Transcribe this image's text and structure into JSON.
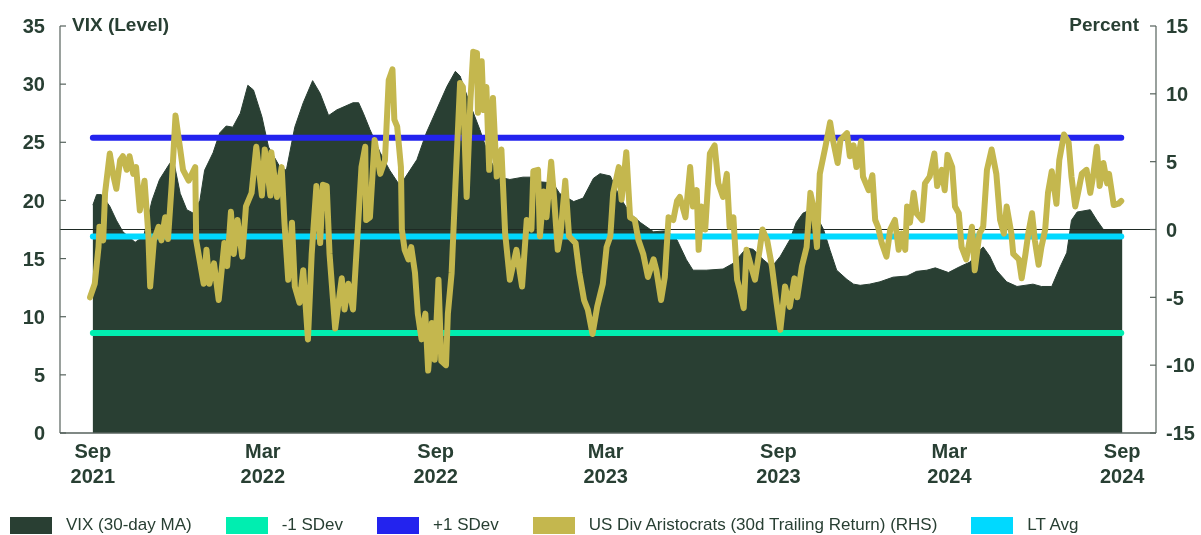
{
  "chart_data": {
    "type": "line",
    "ylabel": "VIX (Level)",
    "y2label": "Percent",
    "xlim": [
      "2021-07-28",
      "2024-10-07"
    ],
    "xticks": [
      {
        "value": "2021-09-01",
        "label": "Sep 2021"
      },
      {
        "value": "2022-03-01",
        "label": "Mar 2022"
      },
      {
        "value": "2022-09-01",
        "label": "Sep 2022"
      },
      {
        "value": "2023-03-01",
        "label": "Mar 2023"
      },
      {
        "value": "2023-09-01",
        "label": "Sep 2023"
      },
      {
        "value": "2024-03-01",
        "label": "Mar 2024"
      },
      {
        "value": "2024-09-01",
        "label": "Sep 2024"
      }
    ],
    "ylim": [
      0,
      35
    ],
    "yticks": [
      0,
      5,
      10,
      15,
      20,
      25,
      30,
      35
    ],
    "y2lim": [
      -15,
      15
    ],
    "y2ticks": [
      -15,
      -10,
      -5,
      0,
      5,
      10,
      15
    ],
    "legend": "bottom",
    "ref_lines": [
      {
        "axis": "y2",
        "value": 0,
        "color": "#1e2a24"
      }
    ],
    "series": [
      {
        "name": "VIX (30-day MA)",
        "type": "area",
        "color": "#293f33",
        "x": [
          "2021-09-01",
          "2021-09-05",
          "2021-09-10",
          "2021-09-19",
          "2021-09-26",
          "2021-10-03",
          "2021-10-16",
          "2021-10-25",
          "2021-11-03",
          "2021-11-11",
          "2021-11-22",
          "2021-11-27",
          "2021-12-03",
          "2021-12-10",
          "2021-12-17",
          "2021-12-24",
          "2021-12-29",
          "2022-01-07",
          "2022-01-14",
          "2022-01-21",
          "2022-01-28",
          "2022-02-05",
          "2022-02-13",
          "2022-02-19",
          "2022-02-28",
          "2022-03-07",
          "2022-03-19",
          "2022-03-26",
          "2022-04-04",
          "2022-04-13",
          "2022-04-23",
          "2022-05-01",
          "2022-05-10",
          "2022-05-19",
          "2022-05-22",
          "2022-06-05",
          "2022-06-11",
          "2022-06-16",
          "2022-06-23",
          "2022-07-04",
          "2022-07-14",
          "2022-07-23",
          "2022-07-30",
          "2022-08-12",
          "2022-08-22",
          "2022-09-02",
          "2022-09-13",
          "2022-09-22",
          "2022-09-27",
          "2022-10-07",
          "2022-10-18",
          "2022-10-29",
          "2022-11-08",
          "2022-11-19",
          "2022-12-03",
          "2022-12-12",
          "2022-12-21",
          "2023-01-04",
          "2023-01-11",
          "2023-01-26",
          "2023-02-05",
          "2023-02-16",
          "2023-02-23",
          "2023-03-06",
          "2023-03-16",
          "2023-03-27",
          "2023-04-07",
          "2023-04-21",
          "2023-05-05",
          "2023-05-16",
          "2023-05-26",
          "2023-06-02",
          "2023-06-16",
          "2023-07-04",
          "2023-07-15",
          "2023-07-29",
          "2023-08-05",
          "2023-08-16",
          "2023-08-25",
          "2023-09-03",
          "2023-09-13",
          "2023-09-20",
          "2023-09-27",
          "2023-10-05",
          "2023-10-12",
          "2023-10-19",
          "2023-10-26",
          "2023-11-02",
          "2023-11-13",
          "2023-11-20",
          "2023-11-27",
          "2023-12-07",
          "2023-12-18",
          "2024-01-01",
          "2024-01-16",
          "2024-01-26",
          "2024-02-06",
          "2024-02-15",
          "2024-02-29",
          "2024-03-12",
          "2024-03-23",
          "2024-04-01",
          "2024-04-06",
          "2024-04-13",
          "2024-04-20",
          "2024-05-01",
          "2024-05-12",
          "2024-05-29",
          "2024-06-07",
          "2024-06-18",
          "2024-06-27",
          "2024-07-04",
          "2024-07-09",
          "2024-07-15",
          "2024-07-29",
          "2024-08-05",
          "2024-08-12",
          "2024-09-01"
        ],
        "values": [
          19.6,
          20.5,
          20.5,
          19.5,
          18.3,
          17.3,
          16.4,
          16.9,
          20.0,
          21.8,
          23.2,
          23.0,
          20.6,
          19.2,
          18.9,
          20.0,
          22.6,
          24.1,
          25.8,
          26.4,
          26.3,
          27.5,
          29.9,
          29.5,
          27.2,
          24.6,
          22.9,
          22.6,
          26.3,
          28.4,
          30.3,
          29.2,
          27.3,
          27.8,
          27.9,
          28.4,
          28.4,
          27.5,
          26.1,
          24.1,
          22.6,
          21.5,
          21.9,
          23.5,
          25.8,
          27.8,
          29.8,
          31.1,
          30.7,
          28.4,
          26.1,
          23.5,
          22.0,
          21.8,
          22.0,
          22.0,
          21.6,
          21.5,
          20.6,
          19.9,
          20.2,
          21.9,
          22.3,
          22.1,
          20.3,
          18.9,
          18.1,
          17.3,
          17.4,
          16.6,
          14.9,
          14.0,
          14.0,
          14.1,
          14.6,
          15.9,
          15.8,
          14.9,
          14.3,
          15.2,
          16.6,
          18.1,
          18.9,
          19.2,
          18.6,
          17.5,
          15.7,
          14.0,
          13.2,
          12.8,
          12.7,
          12.8,
          13.0,
          13.4,
          13.5,
          13.9,
          14.0,
          14.2,
          13.8,
          14.3,
          14.7,
          15.6,
          16.0,
          15.2,
          14.0,
          13.0,
          12.6,
          12.8,
          12.6,
          12.6,
          14.3,
          15.5,
          18.3,
          19.0,
          19.2,
          18.3,
          17.5,
          17.5
        ]
      },
      {
        "name": "-1 SDev",
        "color": "#00eeb0",
        "x": [
          "2021-09-01",
          "2024-08-31"
        ],
        "values": [
          8.6,
          8.6
        ]
      },
      {
        "name": "+1 SDev",
        "color": "#2323ee",
        "x": [
          "2021-09-01",
          "2024-08-31"
        ],
        "values": [
          25.4,
          25.4
        ]
      },
      {
        "name": "US Div Aristocrats (30d Trailing Return) (RHS)",
        "axis": "y2",
        "color": "#c4b74e",
        "x": [
          "2021-08-29",
          "2021-09-03",
          "2021-09-07",
          "2021-09-08",
          "2021-09-12",
          "2021-09-14",
          "2021-09-19",
          "2021-09-23",
          "2021-09-26",
          "2021-09-30",
          "2021-10-03",
          "2021-10-07",
          "2021-10-10",
          "2021-10-14",
          "2021-10-17",
          "2021-10-21",
          "2021-10-26",
          "2021-10-30",
          "2021-11-01",
          "2021-11-05",
          "2021-11-10",
          "2021-11-13",
          "2021-11-17",
          "2021-11-20",
          "2021-11-24",
          "2021-11-28",
          "2021-12-03",
          "2021-12-06",
          "2021-12-12",
          "2021-12-19",
          "2021-12-20",
          "2021-12-28",
          "2021-12-31",
          "2022-01-03",
          "2022-01-08",
          "2022-01-13",
          "2022-01-19",
          "2022-01-22",
          "2022-01-26",
          "2022-01-29",
          "2022-02-02",
          "2022-02-07",
          "2022-02-11",
          "2022-02-17",
          "2022-02-22",
          "2022-02-28",
          "2022-03-03",
          "2022-03-09",
          "2022-03-10",
          "2022-03-16",
          "2022-03-21",
          "2022-03-24",
          "2022-03-28",
          "2022-04-01",
          "2022-04-04",
          "2022-04-09",
          "2022-04-13",
          "2022-04-18",
          "2022-04-22",
          "2022-04-27",
          "2022-05-01",
          "2022-05-04",
          "2022-05-08",
          "2022-05-11",
          "2022-05-17",
          "2022-05-20",
          "2022-05-24",
          "2022-05-27",
          "2022-05-31",
          "2022-06-05",
          "2022-06-09",
          "2022-06-14",
          "2022-06-18",
          "2022-06-19",
          "2022-06-23",
          "2022-06-28",
          "2022-07-04",
          "2022-07-09",
          "2022-07-13",
          "2022-07-17",
          "2022-07-19",
          "2022-07-22",
          "2022-07-26",
          "2022-07-27",
          "2022-07-30",
          "2022-08-03",
          "2022-08-06",
          "2022-08-10",
          "2022-08-13",
          "2022-08-17",
          "2022-08-21",
          "2022-08-24",
          "2022-08-28",
          "2022-08-31",
          "2022-09-04",
          "2022-09-07",
          "2022-09-12",
          "2022-09-14",
          "2022-09-18",
          "2022-09-22",
          "2022-09-27",
          "2022-09-30",
          "2022-10-04",
          "2022-10-08",
          "2022-10-11",
          "2022-10-15",
          "2022-10-16",
          "2022-10-20",
          "2022-10-22",
          "2022-10-25",
          "2022-10-28",
          "2022-11-01",
          "2022-11-05",
          "2022-11-10",
          "2022-11-14",
          "2022-11-19",
          "2022-11-26",
          "2022-12-02",
          "2022-12-07",
          "2022-12-12",
          "2022-12-14",
          "2022-12-19",
          "2022-12-21",
          "2022-12-25",
          "2022-12-28",
          "2023-01-02",
          "2023-01-05",
          "2023-01-09",
          "2023-01-12",
          "2023-01-17",
          "2023-01-21",
          "2023-01-28",
          "2023-02-01",
          "2023-02-06",
          "2023-02-10",
          "2023-02-15",
          "2023-02-20",
          "2023-02-26",
          "2023-03-02",
          "2023-03-06",
          "2023-03-09",
          "2023-03-15",
          "2023-03-18",
          "2023-03-23",
          "2023-03-27",
          "2023-04-01",
          "2023-04-05",
          "2023-04-10",
          "2023-04-15",
          "2023-04-21",
          "2023-04-24",
          "2023-04-29",
          "2023-05-03",
          "2023-05-07",
          "2023-05-12",
          "2023-05-16",
          "2023-05-19",
          "2023-05-25",
          "2023-05-30",
          "2023-06-02",
          "2023-06-06",
          "2023-06-08",
          "2023-06-11",
          "2023-06-15",
          "2023-06-20",
          "2023-06-25",
          "2023-06-29",
          "2023-07-04",
          "2023-07-08",
          "2023-07-11",
          "2023-07-15",
          "2023-07-19",
          "2023-07-22",
          "2023-07-26",
          "2023-07-29",
          "2023-08-04",
          "2023-08-07",
          "2023-08-12",
          "2023-08-15",
          "2023-08-20",
          "2023-08-25",
          "2023-08-30",
          "2023-09-03",
          "2023-09-08",
          "2023-09-13",
          "2023-09-18",
          "2023-09-21",
          "2023-09-26",
          "2023-10-01",
          "2023-10-05",
          "2023-10-08",
          "2023-10-12",
          "2023-10-15",
          "2023-10-21",
          "2023-10-26",
          "2023-10-29",
          "2023-11-03",
          "2023-11-06",
          "2023-11-13",
          "2023-11-16",
          "2023-11-20",
          "2023-11-23",
          "2023-11-28",
          "2023-11-30",
          "2023-12-06",
          "2023-12-10",
          "2023-12-13",
          "2023-12-16",
          "2023-12-20",
          "2023-12-25",
          "2023-12-29",
          "2024-01-03",
          "2024-01-07",
          "2024-01-10",
          "2024-01-14",
          "2024-01-16",
          "2024-01-19",
          "2024-01-23",
          "2024-01-26",
          "2024-02-01",
          "2024-02-04",
          "2024-02-09",
          "2024-02-14",
          "2024-02-17",
          "2024-02-22",
          "2024-02-25",
          "2024-02-28",
          "2024-03-04",
          "2024-03-07",
          "2024-03-11",
          "2024-03-14",
          "2024-03-19",
          "2024-03-25",
          "2024-03-28",
          "2024-04-02",
          "2024-04-06",
          "2024-04-10",
          "2024-04-15",
          "2024-04-20",
          "2024-04-24",
          "2024-04-28",
          "2024-05-01",
          "2024-05-06",
          "2024-05-08",
          "2024-05-14",
          "2024-05-17",
          "2024-05-21",
          "2024-05-24",
          "2024-05-28",
          "2024-05-31",
          "2024-06-04",
          "2024-06-07",
          "2024-06-11",
          "2024-06-14",
          "2024-06-18",
          "2024-06-23",
          "2024-06-26",
          "2024-07-01",
          "2024-07-06",
          "2024-07-09",
          "2024-07-13",
          "2024-07-16",
          "2024-07-20",
          "2024-07-25",
          "2024-07-29",
          "2024-08-01",
          "2024-08-05",
          "2024-08-08",
          "2024-08-12",
          "2024-08-16",
          "2024-08-18",
          "2024-08-23",
          "2024-08-28",
          "2024-08-31"
        ],
        "values": [
          -5.0,
          -4.0,
          -1.3,
          0.2,
          -0.8,
          2.7,
          5.6,
          3.9,
          3.0,
          5.1,
          5.4,
          4.4,
          5.4,
          4.1,
          4.6,
          1.4,
          3.6,
          -0.3,
          -4.2,
          -0.8,
          0.2,
          -0.8,
          0.9,
          -0.7,
          3.4,
          8.4,
          5.9,
          4.4,
          3.6,
          4.6,
          -0.8,
          -4.0,
          -1.5,
          -4.0,
          -2.5,
          -5.2,
          -1.0,
          -2.7,
          1.3,
          -1.8,
          0.7,
          -2.0,
          1.7,
          2.7,
          6.1,
          2.5,
          5.9,
          2.5,
          5.7,
          2.4,
          4.6,
          0.5,
          -3.7,
          0.5,
          -4.2,
          -5.4,
          -3.0,
          -8.1,
          -1.8,
          3.2,
          -1.0,
          3.3,
          3.2,
          -1.8,
          -7.3,
          -5.7,
          -3.6,
          -5.9,
          -4.0,
          -5.9,
          -1.3,
          4.6,
          6.1,
          0.7,
          0.9,
          6.6,
          4.1,
          5.1,
          11.0,
          11.8,
          8.1,
          7.6,
          4.6,
          0.0,
          -1.5,
          -2.2,
          -1.3,
          -3.2,
          -6.2,
          -8.1,
          -6.2,
          -10.4,
          -6.9,
          -9.6,
          -3.7,
          -9.7,
          -10.0,
          -6.2,
          -3.2,
          3.2,
          10.8,
          10.5,
          2.4,
          9.5,
          13.1,
          13.0,
          8.6,
          12.4,
          8.8,
          10.5,
          4.4,
          9.7,
          3.9,
          5.9,
          -0.3,
          -3.7,
          -1.5,
          -4.2,
          0.7,
          0.0,
          4.3,
          4.4,
          -0.5,
          2.8,
          0.9,
          5.0,
          2.4,
          -1.5,
          -0.3,
          3.6,
          -0.5,
          -1.0,
          -3.2,
          -5.2,
          -5.9,
          -7.7,
          -5.7,
          -4.0,
          -1.3,
          -0.5,
          2.7,
          4.6,
          2.2,
          5.7,
          0.9,
          0.7,
          -0.8,
          -1.8,
          -3.5,
          -2.2,
          -3.0,
          -5.2,
          -3.5,
          0.9,
          0.7,
          2.1,
          2.4,
          0.9,
          4.6,
          1.7,
          2.9,
          -1.5,
          1.7,
          0.0,
          5.6,
          6.2,
          3.4,
          2.4,
          4.1,
          0.2,
          0.9,
          -3.7,
          -4.5,
          -5.8,
          -1.5,
          -3.0,
          -3.7,
          -1.5,
          0.0,
          -0.8,
          -2.7,
          -5.4,
          -7.4,
          -4.2,
          -5.7,
          -3.6,
          -5.0,
          -2.7,
          -1.3,
          2.7,
          1.7,
          -1.3,
          4.1,
          6.1,
          7.9,
          6.6,
          4.9,
          6.6,
          7.1,
          5.4,
          6.2,
          4.6,
          6.5,
          3.9,
          2.9,
          4.0,
          0.7,
          0.2,
          -1.0,
          -2.0,
          0.0,
          0.7,
          -1.5,
          -0.3,
          -1.5,
          1.7,
          0.5,
          2.7,
          1.2,
          0.7,
          3.4,
          3.9,
          5.6,
          3.2,
          4.4,
          2.9,
          5.5,
          4.6,
          1.7,
          1.2,
          -1.3,
          -2.2,
          0.2,
          -3.0,
          -0.3,
          0.2,
          4.4,
          5.9,
          4.1,
          0.7,
          -0.3,
          1.7,
          -0.3,
          -1.8,
          -2.2,
          -3.6,
          -1.8,
          -0.3,
          1.2,
          -0.8,
          -2.6,
          -1.3,
          0.0,
          2.7,
          4.3,
          1.9,
          5.1,
          7.0,
          6.4,
          3.9,
          1.7,
          2.7,
          4.1,
          4.4,
          2.7,
          3.9,
          6.1,
          3.2,
          4.9,
          3.4,
          4.1,
          1.8,
          1.9,
          2.1
        ]
      },
      {
        "name": "LT Avg",
        "color": "#00d9ff",
        "x": [
          "2021-09-01",
          "2024-08-31"
        ],
        "values": [
          16.9,
          16.9
        ]
      }
    ]
  }
}
